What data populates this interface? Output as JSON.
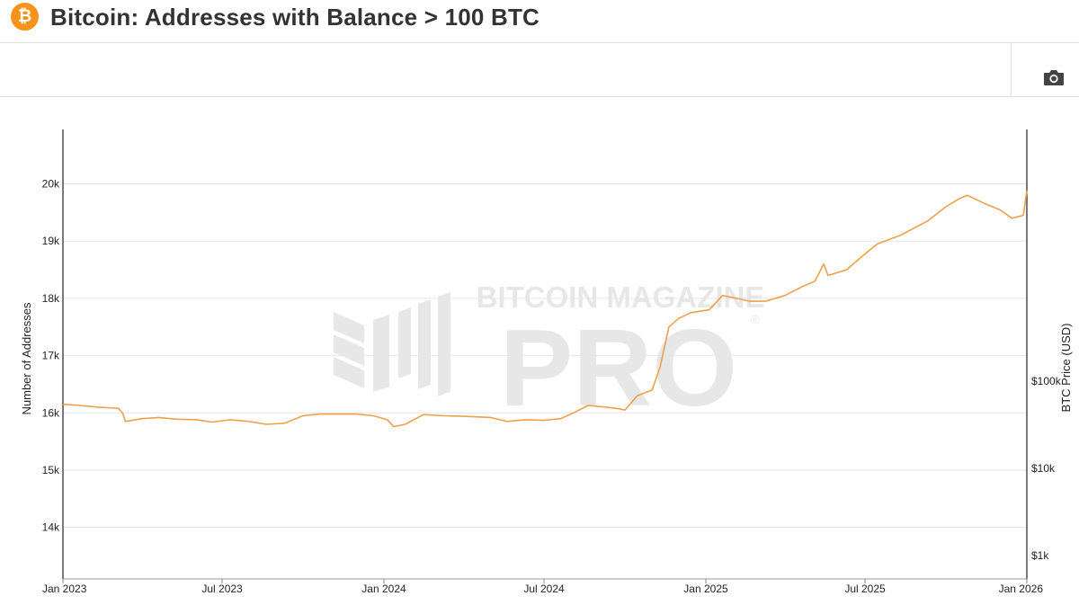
{
  "header": {
    "title": "Bitcoin: Addresses with Balance > 100 BTC",
    "logo_glyph": "₿",
    "logo_color": "#f7931a"
  },
  "toolbar": {
    "camera_icon": "camera-icon"
  },
  "watermark": {
    "line1": "BITCOIN MAGAZINE",
    "line2": "PRO",
    "mark": "®"
  },
  "colors": {
    "series": "#f0a04b",
    "grid": "#e6e6e6",
    "axis": "#333333"
  },
  "chart_data": {
    "type": "line",
    "title": "Bitcoin: Addresses with Balance > 100 BTC",
    "ylabel": "Number of Addresses",
    "y2label": "BTC Price (USD)",
    "xlabel": "",
    "grid": true,
    "legend": "none",
    "ylim": [
      13100,
      20950
    ],
    "yticks": [
      14000,
      15000,
      16000,
      17000,
      18000,
      19000,
      20000
    ],
    "ytick_labels": [
      "14k",
      "15k",
      "16k",
      "17k",
      "18k",
      "19k",
      "20k"
    ],
    "y2_scale": "log",
    "y2ticks": [
      1000,
      10000,
      100000
    ],
    "y2tick_labels": [
      "$1k",
      "$10k",
      "$100k"
    ],
    "xlim": [
      "2023-01-01",
      "2026-01-01"
    ],
    "xticks": [
      "2023-01-01",
      "2023-07-01",
      "2024-01-01",
      "2024-07-01",
      "2025-01-01",
      "2025-07-01",
      "2026-01-01"
    ],
    "xtick_labels": [
      "Jan 2023",
      "Jul 2023",
      "Jan 2024",
      "Jul 2024",
      "Jan 2025",
      "Jul 2025",
      "Jan 2026"
    ],
    "series": [
      {
        "color": "#f0a04b",
        "x": [
          "2023-01-01",
          "2023-01-20",
          "2023-02-10",
          "2023-03-05",
          "2023-03-10",
          "2023-03-13",
          "2023-04-01",
          "2023-04-20",
          "2023-05-10",
          "2023-06-01",
          "2023-06-20",
          "2023-07-10",
          "2023-08-01",
          "2023-08-20",
          "2023-09-10",
          "2023-10-01",
          "2023-10-20",
          "2023-11-10",
          "2023-12-01",
          "2023-12-20",
          "2024-01-05",
          "2024-01-12",
          "2024-01-25",
          "2024-02-15",
          "2024-03-10",
          "2024-04-01",
          "2024-04-15",
          "2024-05-01",
          "2024-05-20",
          "2024-06-10",
          "2024-07-01",
          "2024-07-20",
          "2024-08-05",
          "2024-08-20",
          "2024-09-10",
          "2024-09-25",
          "2024-10-01",
          "2024-10-15",
          "2024-11-01",
          "2024-11-10",
          "2024-11-20",
          "2024-12-01",
          "2024-12-15",
          "2025-01-05",
          "2025-01-20",
          "2025-02-05",
          "2025-02-20",
          "2025-03-10",
          "2025-04-01",
          "2025-04-20",
          "2025-05-05",
          "2025-05-15",
          "2025-05-20",
          "2025-06-10",
          "2025-06-25",
          "2025-07-15",
          "2025-08-10",
          "2025-09-10",
          "2025-10-01",
          "2025-10-15",
          "2025-10-25",
          "2025-11-15",
          "2025-12-01",
          "2025-12-15",
          "2025-12-28",
          "2026-01-01"
        ],
        "y": [
          16150,
          16130,
          16100,
          16080,
          15990,
          15850,
          15900,
          15920,
          15890,
          15880,
          15840,
          15880,
          15850,
          15800,
          15820,
          15950,
          15980,
          15980,
          15980,
          15950,
          15880,
          15760,
          15800,
          15970,
          15950,
          15940,
          15930,
          15920,
          15850,
          15880,
          15870,
          15900,
          16010,
          16130,
          16100,
          16070,
          16050,
          16300,
          16400,
          16800,
          17500,
          17650,
          17750,
          17800,
          18050,
          18000,
          17950,
          17950,
          18050,
          18200,
          18300,
          18600,
          18400,
          18500,
          18700,
          18950,
          19100,
          19350,
          19600,
          19730,
          19800,
          19650,
          19550,
          19400,
          19450,
          19880
        ]
      }
    ]
  }
}
